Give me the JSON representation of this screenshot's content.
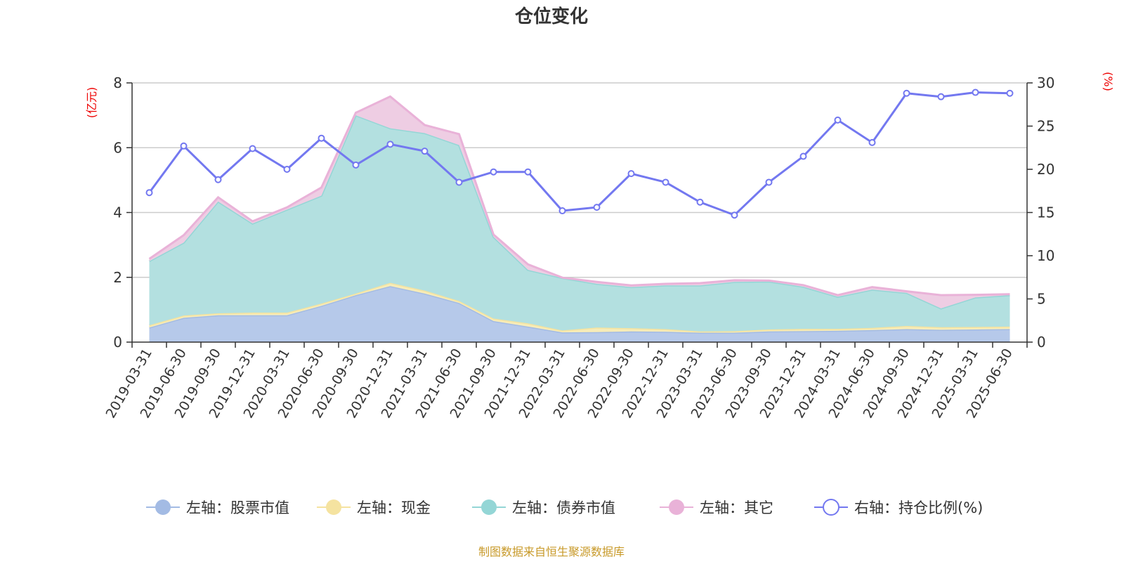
{
  "chart_data": {
    "type": "area",
    "title": "仓位变化",
    "left_unit": "(亿元)",
    "right_unit": "(%)",
    "source": "制图数据来自恒生聚源数据库",
    "left_ylim": [
      0,
      8
    ],
    "left_ticks": [
      "0",
      "2",
      "4",
      "6",
      "8"
    ],
    "right_ylim": [
      0,
      30
    ],
    "right_ticks": [
      "0",
      "5",
      "10",
      "15",
      "20",
      "25",
      "30"
    ],
    "grid": true,
    "legend_position": "bottom",
    "categories": [
      "2019-03-31",
      "2019-06-30",
      "2019-09-30",
      "2019-12-31",
      "2020-03-31",
      "2020-06-30",
      "2020-09-30",
      "2020-12-31",
      "2021-03-31",
      "2021-06-30",
      "2021-09-30",
      "2021-12-31",
      "2022-03-31",
      "2022-06-30",
      "2022-09-30",
      "2022-12-31",
      "2023-03-31",
      "2023-06-30",
      "2023-09-30",
      "2023-12-31",
      "2024-03-31",
      "2024-06-30",
      "2024-09-30",
      "2024-12-31",
      "2025-03-31",
      "2025-06-30"
    ],
    "stack_series": [
      {
        "name": "左轴：股票市值",
        "color": "#a3bbe4",
        "fill": "#b6c9ea",
        "values": [
          0.45,
          0.75,
          0.83,
          0.83,
          0.83,
          1.12,
          1.45,
          1.73,
          1.5,
          1.21,
          0.65,
          0.48,
          0.3,
          0.31,
          0.33,
          0.32,
          0.29,
          0.29,
          0.33,
          0.34,
          0.35,
          0.37,
          0.4,
          0.38,
          0.39,
          0.4
        ]
      },
      {
        "name": "左轴：现金",
        "color": "#f5e3a0",
        "fill": "#f7ecb8",
        "values": [
          0.07,
          0.07,
          0.06,
          0.08,
          0.08,
          0.07,
          0.05,
          0.1,
          0.09,
          0.06,
          0.08,
          0.1,
          0.06,
          0.14,
          0.1,
          0.08,
          0.04,
          0.05,
          0.06,
          0.07,
          0.06,
          0.07,
          0.1,
          0.08,
          0.08,
          0.08
        ]
      },
      {
        "name": "左轴：债券市值",
        "color": "#94d6d6",
        "fill": "#b3e0e0",
        "values": [
          1.98,
          2.25,
          3.45,
          2.75,
          3.18,
          3.33,
          5.5,
          4.77,
          4.86,
          4.81,
          2.52,
          1.65,
          1.62,
          1.35,
          1.27,
          1.35,
          1.42,
          1.52,
          1.48,
          1.3,
          0.99,
          1.18,
          1.02,
          0.58,
          0.91,
          0.97
        ]
      },
      {
        "name": "左轴：其它",
        "color": "#e9b2d8",
        "fill": "#eecde3",
        "values": [
          0.07,
          0.23,
          0.13,
          0.07,
          0.07,
          0.25,
          0.08,
          0.98,
          0.25,
          0.34,
          0.07,
          0.17,
          0.01,
          0.06,
          0.05,
          0.05,
          0.07,
          0.05,
          0.03,
          0.05,
          0.05,
          0.08,
          0.05,
          0.41,
          0.08,
          0.03
        ]
      }
    ],
    "line_series": {
      "name": "右轴：持仓比例(%)",
      "color": "#7378f0",
      "values": [
        17.3,
        22.7,
        18.8,
        22.4,
        20.0,
        23.6,
        20.5,
        22.9,
        22.1,
        18.5,
        19.7,
        19.7,
        15.2,
        15.6,
        19.5,
        18.5,
        16.2,
        14.7,
        18.5,
        21.5,
        25.7,
        23.1,
        28.8,
        28.4,
        28.9,
        28.8
      ]
    }
  }
}
